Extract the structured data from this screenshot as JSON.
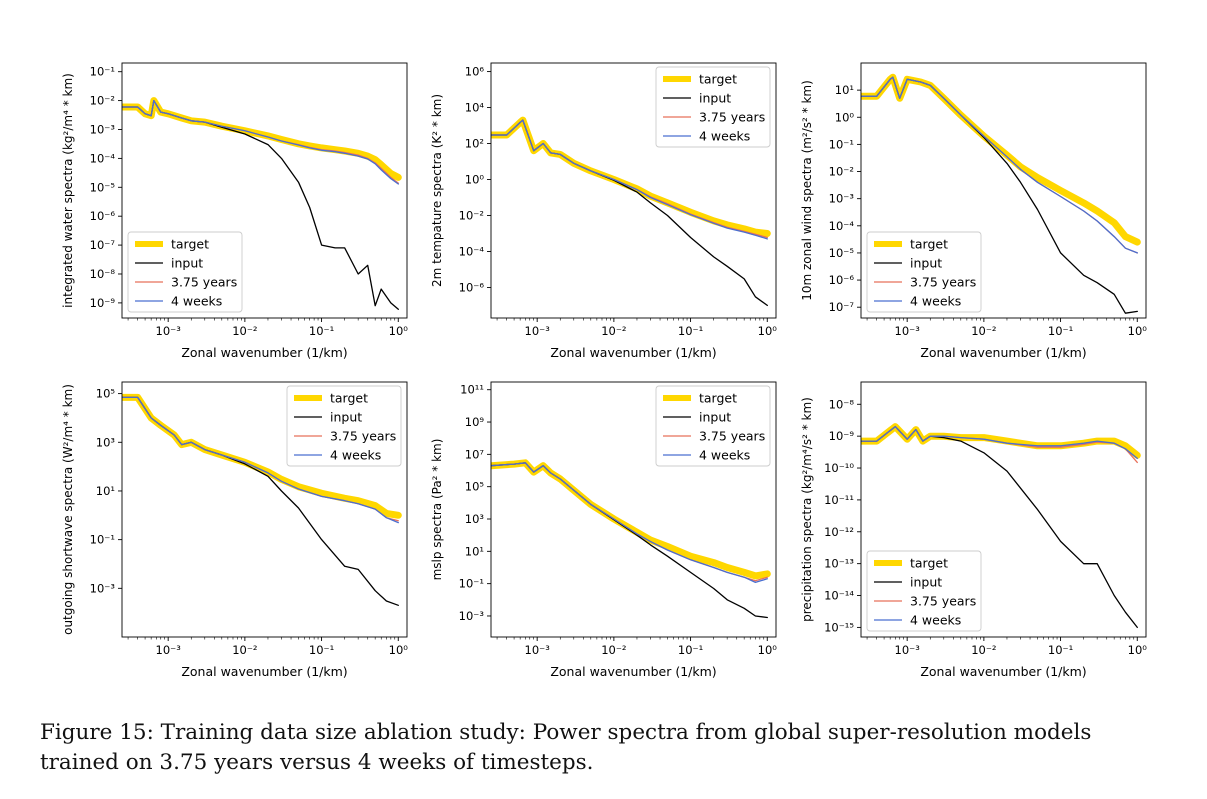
{
  "caption": "Figure 15: Training data size ablation study: Power spectra from global super-resolution models trained on 3.75 years versus 4 weeks of timesteps.",
  "colors": {
    "target": "#FFD700",
    "input": "#000000",
    "years": "#E8705A",
    "weeks": "#4A6FD0"
  },
  "chart_data": [
    {
      "type": "line",
      "ylabel": "integrated water spectra (kg²/m⁴ * km)",
      "xlabel": "Zonal wavenumber (1/km)",
      "xscale": "log",
      "yscale": "log",
      "xlim": [
        0.00025,
        1.3
      ],
      "ylim": [
        3e-10,
        0.2
      ],
      "xticks": [
        0.001,
        0.01,
        0.1,
        1
      ],
      "xtick_labels": [
        "10⁻³",
        "10⁻²",
        "10⁻¹",
        "10⁰"
      ],
      "yticks": [
        1e-09,
        1e-08,
        1e-07,
        1e-06,
        1e-05,
        0.0001,
        0.001,
        0.01,
        0.1
      ],
      "ytick_labels": [
        "10⁻⁹",
        "10⁻⁸",
        "10⁻⁷",
        "10⁻⁶",
        "10⁻⁵",
        "10⁻⁴",
        "10⁻³",
        "10⁻²",
        "10⁻¹"
      ],
      "legend_loc": "lower-left",
      "x": [
        0.00025,
        0.0004,
        0.0005,
        0.0006,
        0.00065,
        0.0008,
        0.001,
        0.0015,
        0.002,
        0.003,
        0.005,
        0.01,
        0.02,
        0.03,
        0.05,
        0.07,
        0.1,
        0.15,
        0.2,
        0.3,
        0.4,
        0.5,
        0.6,
        0.8,
        1.0
      ],
      "target": [
        0.006,
        0.006,
        0.0035,
        0.003,
        0.01,
        0.004,
        0.0035,
        0.0025,
        0.002,
        0.0018,
        0.0013,
        0.0009,
        0.0006,
        0.00045,
        0.00032,
        0.00027,
        0.00023,
        0.0002,
        0.00018,
        0.00015,
        0.00012,
        9e-05,
        6e-05,
        3e-05,
        2.2e-05
      ],
      "years": [
        0.006,
        0.006,
        0.0035,
        0.003,
        0.01,
        0.004,
        0.0035,
        0.0025,
        0.002,
        0.0018,
        0.0013,
        0.0009,
        0.00055,
        0.0004,
        0.0003,
        0.00024,
        0.0002,
        0.00018,
        0.00016,
        0.00013,
        0.0001,
        7e-05,
        4.5e-05,
        2.2e-05,
        1.4e-05
      ],
      "weeks": [
        0.006,
        0.006,
        0.0035,
        0.003,
        0.01,
        0.004,
        0.0035,
        0.0025,
        0.002,
        0.0018,
        0.0013,
        0.0009,
        0.00055,
        0.0004,
        0.00029,
        0.00023,
        0.00019,
        0.00017,
        0.00015,
        0.00012,
        9.5e-05,
        6.5e-05,
        4e-05,
        2e-05,
        1.3e-05
      ],
      "input": [
        0.006,
        0.006,
        0.0035,
        0.003,
        0.01,
        0.004,
        0.0035,
        0.0025,
        0.002,
        0.0018,
        0.0012,
        0.0007,
        0.0003,
        0.0001,
        1.5e-05,
        2e-06,
        1e-07,
        8e-08,
        8e-08,
        1e-08,
        2e-08,
        8e-10,
        3e-09,
        1e-09,
        6e-10
      ]
    },
    {
      "type": "line",
      "ylabel": "2m tempature spectra (K² * km)",
      "xlabel": "Zonal wavenumber (1/km)",
      "xscale": "log",
      "yscale": "log",
      "xlim": [
        0.00025,
        1.3
      ],
      "ylim": [
        2e-08,
        3000000.0
      ],
      "xticks": [
        0.001,
        0.01,
        0.1,
        1
      ],
      "xtick_labels": [
        "10⁻³",
        "10⁻²",
        "10⁻¹",
        "10⁰"
      ],
      "yticks": [
        1e-06,
        0.0001,
        0.01,
        1,
        100,
        10000,
        1000000
      ],
      "ytick_labels": [
        "10⁻⁶",
        "10⁻⁴",
        "10⁻²",
        "10⁰",
        "10²",
        "10⁴",
        "10⁶"
      ],
      "legend_loc": "upper-right",
      "x": [
        0.00025,
        0.0004,
        0.0006,
        0.00065,
        0.0009,
        0.0012,
        0.0015,
        0.002,
        0.003,
        0.005,
        0.01,
        0.02,
        0.03,
        0.05,
        0.1,
        0.2,
        0.3,
        0.5,
        0.7,
        1.0
      ],
      "target": [
        300,
        300,
        1500,
        2000,
        40,
        100,
        30,
        25,
        8,
        3,
        1,
        0.3,
        0.12,
        0.05,
        0.015,
        0.005,
        0.003,
        0.0018,
        0.0012,
        0.001
      ],
      "years": [
        300,
        300,
        1500,
        2000,
        40,
        100,
        30,
        25,
        8,
        3,
        1,
        0.28,
        0.11,
        0.045,
        0.012,
        0.004,
        0.0022,
        0.0013,
        0.0009,
        0.0006
      ],
      "weeks": [
        300,
        300,
        1500,
        2000,
        40,
        100,
        30,
        25,
        8,
        3,
        1,
        0.27,
        0.1,
        0.04,
        0.011,
        0.0037,
        0.002,
        0.0012,
        0.0008,
        0.0005
      ],
      "input": [
        300,
        300,
        1500,
        2000,
        40,
        100,
        30,
        25,
        8,
        3,
        0.9,
        0.2,
        0.05,
        0.01,
        0.0006,
        5e-05,
        1.5e-05,
        3e-06,
        3e-07,
        1e-07
      ]
    },
    {
      "type": "line",
      "ylabel": "10m zonal wind spectra (m²/s² * km)",
      "xlabel": "Zonal wavenumber (1/km)",
      "xscale": "log",
      "yscale": "log",
      "xlim": [
        0.00025,
        1.3
      ],
      "ylim": [
        4e-08,
        100
      ],
      "xticks": [
        0.001,
        0.01,
        0.1,
        1
      ],
      "xtick_labels": [
        "10⁻³",
        "10⁻²",
        "10⁻¹",
        "10⁰"
      ],
      "yticks": [
        1e-07,
        1e-06,
        1e-05,
        0.0001,
        0.001,
        0.01,
        0.1,
        1,
        10
      ],
      "ytick_labels": [
        "10⁻⁷",
        "10⁻⁶",
        "10⁻⁵",
        "10⁻⁴",
        "10⁻³",
        "10⁻²",
        "10⁻¹",
        "10⁰",
        "10¹"
      ],
      "legend_loc": "lower-left",
      "x": [
        0.00025,
        0.0004,
        0.0006,
        0.00065,
        0.0008,
        0.001,
        0.0015,
        0.002,
        0.003,
        0.005,
        0.01,
        0.02,
        0.03,
        0.05,
        0.1,
        0.2,
        0.3,
        0.5,
        0.7,
        1.0
      ],
      "target": [
        6,
        6,
        25,
        30,
        5,
        25,
        20,
        15,
        5,
        1.2,
        0.2,
        0.04,
        0.015,
        0.006,
        0.002,
        0.0007,
        0.00035,
        0.00013,
        4e-05,
        2.5e-05
      ],
      "years": [
        6,
        6,
        25,
        30,
        5,
        25,
        20,
        15,
        5,
        1.2,
        0.2,
        0.035,
        0.012,
        0.004,
        0.0012,
        0.00035,
        0.00015,
        4e-05,
        1.5e-05,
        1e-05
      ],
      "weeks": [
        6,
        6,
        25,
        30,
        5,
        25,
        20,
        15,
        5,
        1.2,
        0.2,
        0.035,
        0.012,
        0.004,
        0.0012,
        0.00035,
        0.00015,
        4e-05,
        1.5e-05,
        1e-05
      ],
      "input": [
        6,
        6,
        25,
        30,
        5,
        25,
        20,
        15,
        5,
        1.2,
        0.18,
        0.02,
        0.004,
        0.0004,
        1e-05,
        1.5e-06,
        8e-07,
        3e-07,
        6e-08,
        7e-08
      ]
    },
    {
      "type": "line",
      "ylabel": "outgoing shortwave spectra (W²/m⁴ * km)",
      "xlabel": "Zonal wavenumber (1/km)",
      "xscale": "log",
      "yscale": "log",
      "xlim": [
        0.00025,
        1.3
      ],
      "ylim": [
        1e-05,
        300000
      ],
      "xticks": [
        0.001,
        0.01,
        0.1,
        1
      ],
      "xtick_labels": [
        "10⁻³",
        "10⁻²",
        "10⁻¹",
        "10⁰"
      ],
      "yticks": [
        0.001,
        0.1,
        10,
        1000,
        100000
      ],
      "ytick_labels": [
        "10⁻³",
        "10⁻¹",
        "10¹",
        "10³",
        "10⁵"
      ],
      "legend_loc": "upper-right",
      "x": [
        0.00025,
        0.0004,
        0.0006,
        0.0008,
        0.0012,
        0.0015,
        0.002,
        0.003,
        0.005,
        0.01,
        0.02,
        0.03,
        0.05,
        0.1,
        0.2,
        0.3,
        0.5,
        0.7,
        1.0
      ],
      "target": [
        70000,
        70000,
        10000,
        5000,
        2000,
        800,
        1000,
        500,
        300,
        150,
        60,
        30,
        15,
        8,
        5,
        4,
        2.5,
        1.2,
        1.0
      ],
      "years": [
        70000,
        70000,
        10000,
        5000,
        2000,
        800,
        1000,
        500,
        300,
        150,
        55,
        25,
        12,
        6,
        4,
        3,
        1.8,
        0.8,
        0.6
      ],
      "weeks": [
        70000,
        70000,
        10000,
        5000,
        2000,
        800,
        1000,
        500,
        300,
        150,
        55,
        25,
        12,
        6,
        4,
        3,
        1.8,
        0.8,
        0.5
      ],
      "input": [
        70000,
        70000,
        10000,
        5000,
        2000,
        800,
        1000,
        500,
        300,
        130,
        40,
        10,
        2,
        0.1,
        0.008,
        0.006,
        0.0008,
        0.0003,
        0.0002
      ]
    },
    {
      "type": "line",
      "ylabel": "mslp spectra (Pa² * km)",
      "xlabel": "Zonal wavenumber (1/km)",
      "xscale": "log",
      "yscale": "log",
      "xlim": [
        0.00025,
        1.3
      ],
      "ylim": [
        5e-05,
        300000000000.0
      ],
      "xticks": [
        0.001,
        0.01,
        0.1,
        1
      ],
      "xtick_labels": [
        "10⁻³",
        "10⁻²",
        "10⁻¹",
        "10⁰"
      ],
      "yticks": [
        0.001,
        0.1,
        10,
        1000,
        100000,
        10000000,
        1000000000,
        100000000000
      ],
      "ytick_labels": [
        "10⁻³",
        "10⁻¹",
        "10¹",
        "10³",
        "10⁵",
        "10⁷",
        "10⁹",
        "10¹¹"
      ],
      "legend_loc": "upper-right",
      "x": [
        0.00025,
        0.0005,
        0.0007,
        0.0009,
        0.0012,
        0.0015,
        0.002,
        0.003,
        0.005,
        0.01,
        0.02,
        0.03,
        0.05,
        0.1,
        0.2,
        0.3,
        0.5,
        0.7,
        1.0
      ],
      "target": [
        2000000,
        2500000,
        3000000,
        800000,
        2000000,
        700000,
        300000,
        60000,
        8000,
        1000,
        150,
        50,
        20,
        5,
        2,
        1,
        0.5,
        0.3,
        0.4
      ],
      "years": [
        2000000,
        2500000,
        3000000,
        800000,
        2000000,
        700000,
        300000,
        60000,
        8000,
        1000,
        120,
        40,
        12,
        3,
        1,
        0.5,
        0.25,
        0.15,
        0.25
      ],
      "weeks": [
        2000000,
        2500000,
        3000000,
        800000,
        2000000,
        700000,
        300000,
        60000,
        8000,
        1000,
        120,
        40,
        12,
        3,
        1,
        0.5,
        0.25,
        0.12,
        0.2
      ],
      "input": [
        2000000,
        2500000,
        3000000,
        800000,
        2000000,
        700000,
        300000,
        60000,
        8000,
        900,
        100,
        25,
        5,
        0.5,
        0.05,
        0.01,
        0.003,
        0.001,
        0.0008
      ]
    },
    {
      "type": "line",
      "ylabel": "precipitation spectra (kg²/m⁴/s² * km)",
      "xlabel": "Zonal wavenumber (1/km)",
      "xscale": "log",
      "yscale": "log",
      "xlim": [
        0.00025,
        1.3
      ],
      "ylim": [
        5e-16,
        5e-08
      ],
      "xticks": [
        0.001,
        0.01,
        0.1,
        1
      ],
      "xtick_labels": [
        "10⁻³",
        "10⁻²",
        "10⁻¹",
        "10⁰"
      ],
      "yticks": [
        1e-15,
        1e-14,
        1e-13,
        1e-12,
        1e-11,
        1e-10,
        1e-09,
        1e-08
      ],
      "ytick_labels": [
        "10⁻¹⁵",
        "10⁻¹⁴",
        "10⁻¹³",
        "10⁻¹²",
        "10⁻¹¹",
        "10⁻¹⁰",
        "10⁻⁹",
        "10⁻⁸"
      ],
      "legend_loc": "lower-left",
      "x": [
        0.00025,
        0.0004,
        0.0007,
        0.001,
        0.0013,
        0.0016,
        0.002,
        0.003,
        0.005,
        0.01,
        0.02,
        0.05,
        0.1,
        0.2,
        0.3,
        0.5,
        0.7,
        1.0
      ],
      "target": [
        7e-10,
        7e-10,
        2e-09,
        8e-10,
        1.6e-09,
        7e-10,
        1e-09,
        1e-09,
        9e-10,
        9e-10,
        7e-10,
        5e-10,
        5e-10,
        6e-10,
        7e-10,
        7e-10,
        5e-10,
        2.5e-10
      ],
      "years": [
        7e-10,
        7e-10,
        2e-09,
        8e-10,
        1.6e-09,
        7e-10,
        1e-09,
        1e-09,
        9e-10,
        8e-10,
        6e-10,
        4.5e-10,
        4.5e-10,
        5.5e-10,
        6.5e-10,
        6e-10,
        4e-10,
        1.5e-10
      ],
      "weeks": [
        7e-10,
        7e-10,
        2e-09,
        8e-10,
        1.6e-09,
        7e-10,
        1e-09,
        1e-09,
        9e-10,
        8e-10,
        6e-10,
        5e-10,
        5e-10,
        6e-10,
        7e-10,
        6e-10,
        4e-10,
        2e-10
      ],
      "input": [
        7e-10,
        7e-10,
        2e-09,
        8e-10,
        1.6e-09,
        7e-10,
        1e-09,
        9e-10,
        7e-10,
        3e-10,
        8e-11,
        5e-12,
        5e-13,
        1e-13,
        1e-13,
        1e-14,
        3e-15,
        1e-15
      ]
    }
  ],
  "legend": {
    "target": "target",
    "input": "input",
    "years": "3.75 years",
    "weeks": "4 weeks"
  }
}
